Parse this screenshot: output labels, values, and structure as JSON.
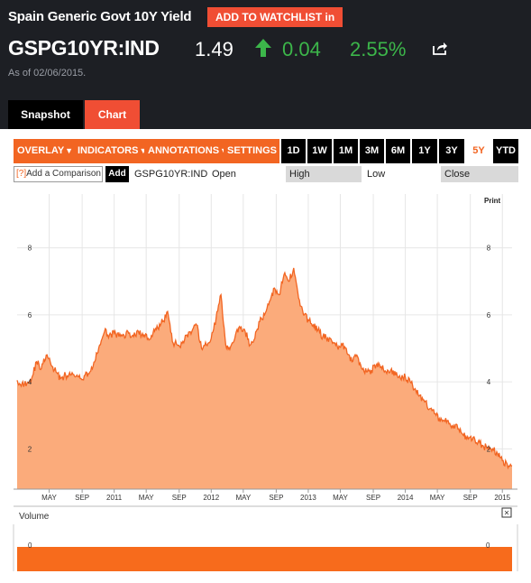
{
  "header": {
    "title": "Spain Generic Govt 10Y Yield",
    "watchlist_label": "ADD TO WATCHLIST in",
    "ticker": "GSPG10YR:IND",
    "price": "1.49",
    "change": "0.04",
    "change_pct": "2.55%",
    "as_of": "As of 02/06/2015.",
    "tabs": [
      "Snapshot",
      "Chart"
    ],
    "up_color": "#3cb64a",
    "accent": "#f04e34"
  },
  "toolbar": {
    "menus": [
      "OVERLAY",
      "INDICATORS",
      "ANNOTATIONS",
      "SETTINGS"
    ],
    "ranges": [
      "1D",
      "1W",
      "1M",
      "3M",
      "6M",
      "1Y",
      "3Y",
      "5Y",
      "YTD"
    ],
    "active_range": "5Y",
    "compare_placeholder": "Add a Comparison",
    "compare_hint": "[?]",
    "add_label": "Add",
    "symbol": "GSPG10YR:IND",
    "ohlc": [
      "Open",
      "High",
      "Low",
      "Close"
    ]
  },
  "chart_data": {
    "type": "area",
    "title": "",
    "xlabel": "",
    "ylabel": "",
    "print_label": "Print",
    "ylim": [
      0.8,
      9.2
    ],
    "y_ticks": [
      2,
      4,
      6,
      8
    ],
    "x_tick_labels": [
      "MAY",
      "SEP",
      "2011",
      "MAY",
      "SEP",
      "2012",
      "MAY",
      "SEP",
      "2013",
      "MAY",
      "SEP",
      "2014",
      "MAY",
      "SEP",
      "2015"
    ],
    "x_tick_years": [
      2010.33,
      2010.67,
      2011.0,
      2011.33,
      2011.67,
      2012.0,
      2012.33,
      2012.67,
      2013.0,
      2013.33,
      2013.67,
      2014.0,
      2014.33,
      2014.67,
      2015.0
    ],
    "xlim": [
      2010.0,
      2015.1
    ],
    "x": [
      2010.0,
      2010.05,
      2010.1,
      2010.15,
      2010.2,
      2010.25,
      2010.3,
      2010.35,
      2010.4,
      2010.45,
      2010.5,
      2010.55,
      2010.6,
      2010.65,
      2010.7,
      2010.75,
      2010.8,
      2010.85,
      2010.9,
      2010.95,
      2011.0,
      2011.05,
      2011.1,
      2011.15,
      2011.2,
      2011.25,
      2011.3,
      2011.35,
      2011.4,
      2011.45,
      2011.5,
      2011.55,
      2011.6,
      2011.65,
      2011.7,
      2011.75,
      2011.8,
      2011.85,
      2011.9,
      2011.95,
      2012.0,
      2012.05,
      2012.1,
      2012.15,
      2012.2,
      2012.25,
      2012.3,
      2012.35,
      2012.4,
      2012.45,
      2012.5,
      2012.55,
      2012.6,
      2012.65,
      2012.7,
      2012.75,
      2012.8,
      2012.85,
      2012.9,
      2012.95,
      2013.0,
      2013.05,
      2013.1,
      2013.15,
      2013.2,
      2013.25,
      2013.3,
      2013.35,
      2013.4,
      2013.45,
      2013.5,
      2013.55,
      2013.6,
      2013.65,
      2013.7,
      2013.75,
      2013.8,
      2013.85,
      2013.9,
      2013.95,
      2014.0,
      2014.05,
      2014.1,
      2014.15,
      2014.2,
      2014.25,
      2014.3,
      2014.35,
      2014.4,
      2014.45,
      2014.5,
      2014.55,
      2014.6,
      2014.65,
      2014.7,
      2014.75,
      2014.8,
      2014.85,
      2014.9,
      2014.95,
      2015.0,
      2015.05,
      2015.1
    ],
    "values": [
      4.05,
      3.95,
      3.95,
      4.1,
      4.6,
      4.4,
      4.8,
      4.5,
      4.3,
      4.1,
      4.2,
      4.2,
      4.15,
      4.1,
      4.2,
      4.3,
      4.6,
      5.1,
      5.5,
      5.4,
      5.45,
      5.35,
      5.4,
      5.45,
      5.35,
      5.5,
      5.35,
      5.3,
      5.45,
      5.6,
      5.8,
      6.1,
      5.2,
      5.1,
      5.15,
      5.4,
      5.5,
      5.7,
      5.0,
      5.1,
      5.3,
      5.9,
      6.6,
      5.1,
      5.05,
      5.4,
      5.6,
      5.5,
      5.1,
      5.3,
      5.8,
      6.0,
      6.4,
      6.8,
      6.6,
      7.2,
      7.0,
      7.4,
      6.5,
      6.0,
      5.85,
      5.7,
      5.55,
      5.35,
      5.3,
      5.15,
      5.05,
      5.1,
      4.85,
      4.6,
      4.8,
      4.4,
      4.3,
      4.35,
      4.5,
      4.45,
      4.3,
      4.35,
      4.2,
      4.1,
      4.15,
      4.0,
      3.8,
      3.6,
      3.4,
      3.2,
      3.05,
      2.9,
      2.85,
      2.75,
      2.7,
      2.6,
      2.4,
      2.3,
      2.35,
      2.2,
      2.1,
      2.0,
      2.0,
      1.85,
      1.65,
      1.55,
      1.49
    ],
    "grid": true,
    "legend": "none"
  },
  "volume_panel": {
    "label": "Volume",
    "close_symbol": "×",
    "y_tick": "0"
  }
}
